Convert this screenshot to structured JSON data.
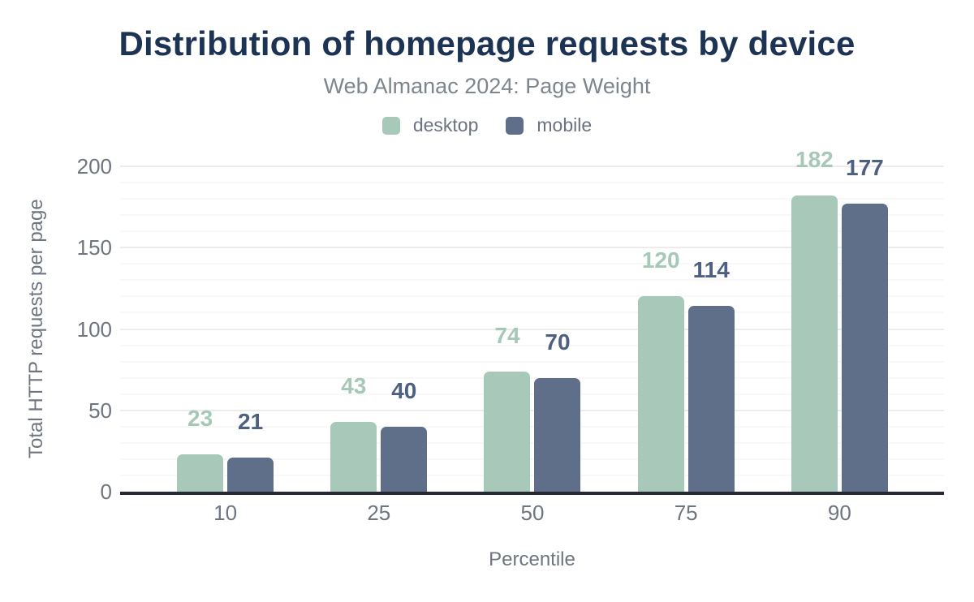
{
  "chart_data": {
    "type": "bar",
    "title": "Distribution of homepage requests by device",
    "subtitle": "Web Almanac 2024: Page Weight",
    "title_color": "#1c3353",
    "xlabel": "Percentile",
    "ylabel": "Total HTTP requests per page",
    "categories": [
      "10",
      "25",
      "50",
      "75",
      "90"
    ],
    "series": [
      {
        "name": "desktop",
        "values": [
          23,
          43,
          74,
          120,
          182
        ],
        "color": "#a8c9ba",
        "label_color": "#a5c8b7"
      },
      {
        "name": "mobile",
        "values": [
          21,
          40,
          70,
          114,
          177
        ],
        "color": "#5f6f89",
        "label_color": "#4e6081"
      }
    ],
    "ylim": [
      0,
      200
    ],
    "y_ticks": [
      0,
      50,
      100,
      150,
      200
    ],
    "grid": true,
    "grid_minor_step": 10,
    "grid_major_step": 50,
    "legend_position": "top"
  }
}
